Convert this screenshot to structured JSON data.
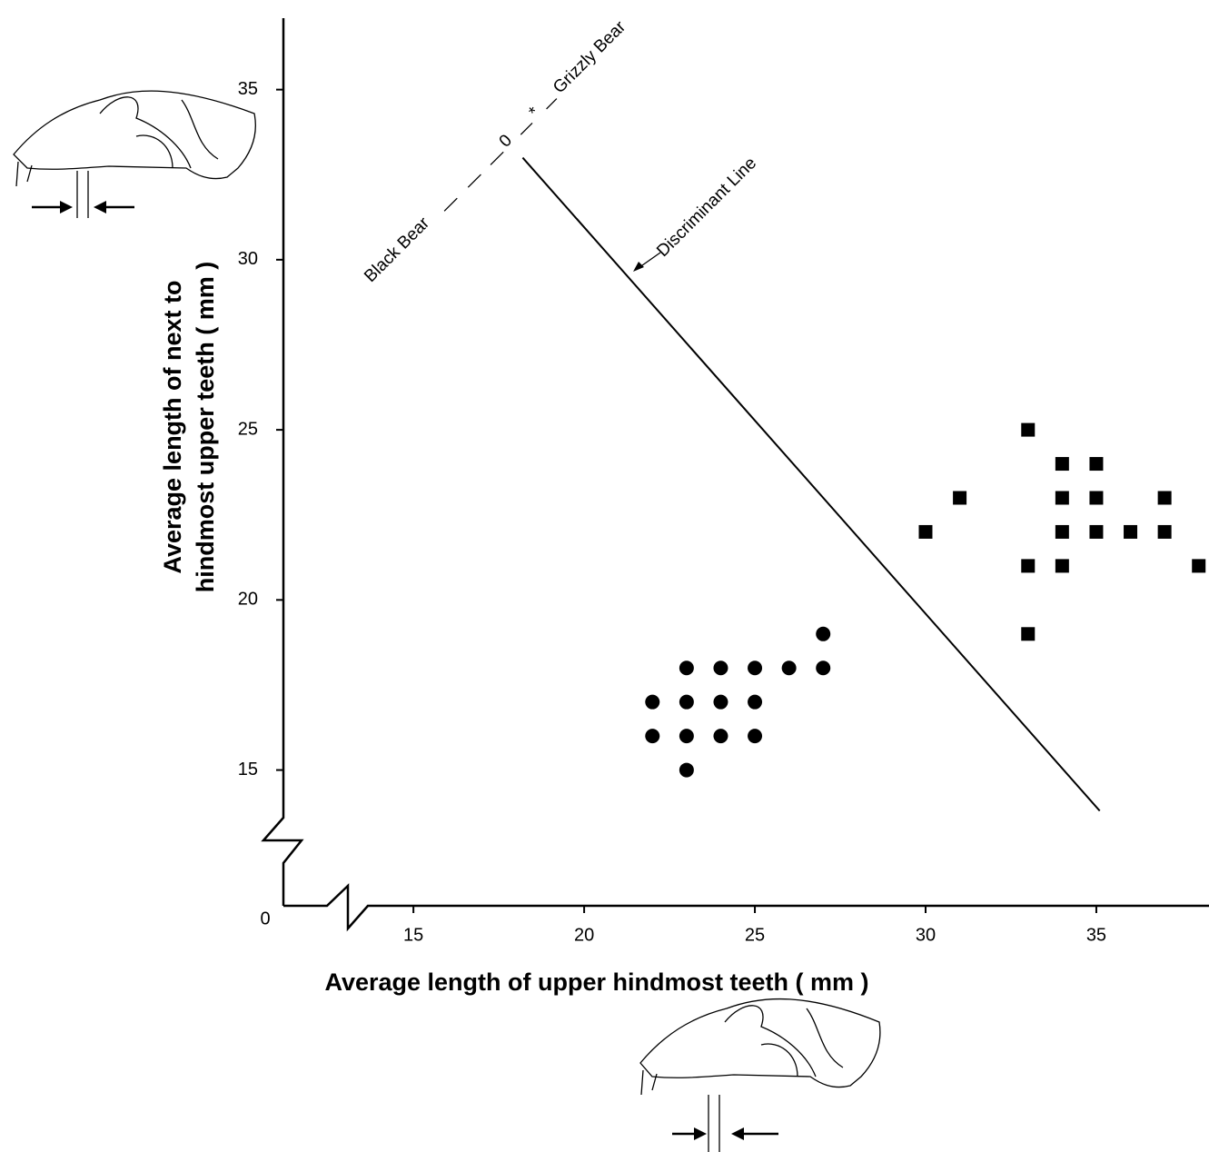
{
  "chart_data": {
    "type": "scatter",
    "x_label": "Average length of upper hindmost teeth ( mm )",
    "y_label": [
      "Average length of next to",
      "hindmost upper teeth ( mm )"
    ],
    "xlim": [
      13.4,
      38.3
    ],
    "ylim": [
      13.6,
      37.1
    ],
    "xticks": [
      15,
      20,
      25,
      30,
      35
    ],
    "yticks": [
      15,
      20,
      25,
      30,
      35
    ],
    "origin_tick": 0,
    "series": [
      {
        "name": "Black Bear",
        "symbol": "0",
        "marker": "circle",
        "color": "#000000",
        "x": [
          22,
          22,
          23,
          23,
          23,
          23,
          24,
          24,
          24,
          25,
          25,
          25,
          26,
          27,
          27
        ],
        "y": [
          17,
          16,
          18,
          17,
          16,
          15,
          18,
          17,
          16,
          18,
          17,
          16,
          18,
          19,
          18
        ]
      },
      {
        "name": "Grizzly Bear",
        "symbol": "*",
        "marker": "square",
        "color": "#000000",
        "x": [
          30,
          31,
          33,
          33,
          33,
          34,
          34,
          34,
          34,
          35,
          35,
          35,
          36,
          37,
          37,
          38
        ],
        "y": [
          22,
          23,
          25,
          21,
          19,
          24,
          23,
          22,
          21,
          24,
          23,
          22,
          22,
          23,
          22,
          21
        ]
      }
    ],
    "discriminant_line": {
      "label": "Discriminant Line",
      "x": [
        18.2,
        35.1
      ],
      "y": [
        33,
        13.8
      ]
    }
  }
}
